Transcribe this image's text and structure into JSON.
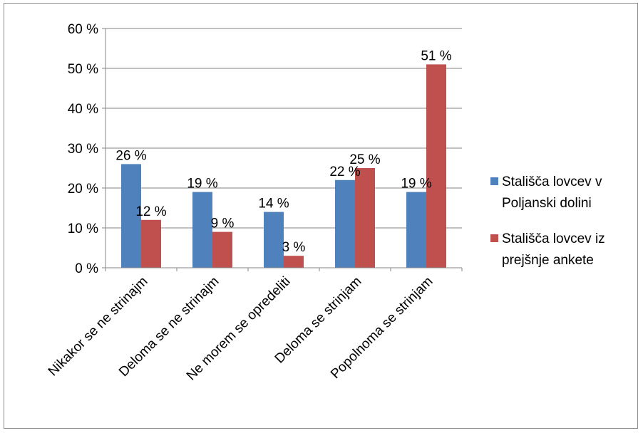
{
  "chart_data": {
    "type": "bar",
    "categories": [
      "Nikakor se ne strinajm",
      "Deloma se ne strinajm",
      "Ne morem se opredeliti",
      "Deloma se strinjam",
      "Popolnoma se strinjam"
    ],
    "series": [
      {
        "name": "Stališča lovcev v Poljanski dolini",
        "name_lines": [
          "Stališča lovcev v",
          "Poljanski dolini"
        ],
        "color": "#4f81bd",
        "values": [
          26,
          19,
          14,
          22,
          19
        ],
        "labels": [
          "26 %",
          "19 %",
          "14 %",
          "22 %",
          "19 %"
        ]
      },
      {
        "name": "Stališča lovcev iz prejšnje ankete",
        "name_lines": [
          "Stališča lovcev iz",
          "prejšnje ankete"
        ],
        "color": "#c0504d",
        "values": [
          12,
          9,
          3,
          25,
          51
        ],
        "labels": [
          "12 %",
          "9 %",
          "3 %",
          "25 %",
          "51 %"
        ]
      }
    ],
    "ylim": [
      0,
      60
    ],
    "yticks": [
      "0 %",
      "10 %",
      "20 %",
      "30 %",
      "40 %",
      "50 %",
      "60 %"
    ],
    "grid": true,
    "legend": "right",
    "title": "",
    "xlabel": "",
    "ylabel": ""
  }
}
